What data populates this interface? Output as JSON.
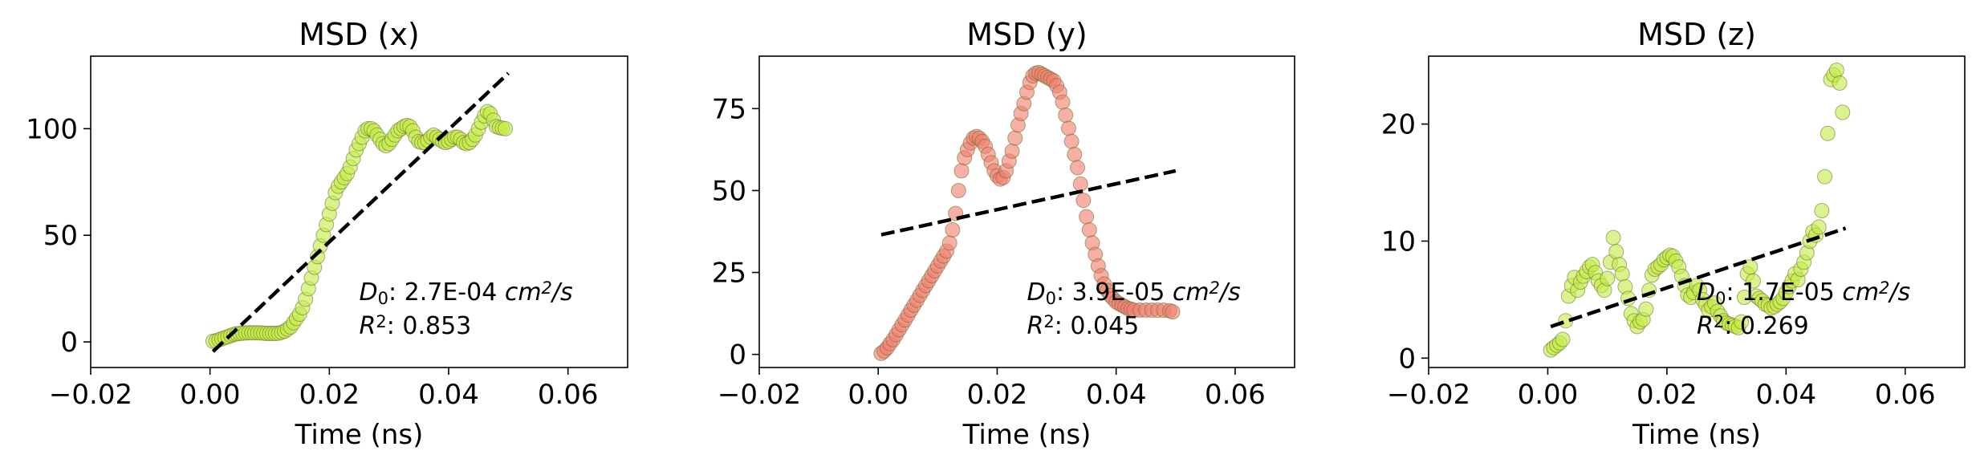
{
  "chart_data": [
    {
      "type": "scatter",
      "title": "MSD (x)",
      "xlabel": "Time (ns)",
      "ylabel": "",
      "xlim": [
        -0.02,
        0.07
      ],
      "ylim": [
        -12,
        134
      ],
      "xticks": [
        -0.02,
        0.0,
        0.02,
        0.04,
        0.06
      ],
      "xtick_labels": [
        "−0.02",
        "0.00",
        "0.02",
        "0.04",
        "0.06"
      ],
      "yticks": [
        0,
        50,
        100
      ],
      "ytick_labels": [
        "0",
        "50",
        "100"
      ],
      "point_color": "#c5ec4a",
      "points": [
        [
          0.0005,
          0.3
        ],
        [
          0.001,
          0.5
        ],
        [
          0.0015,
          1
        ],
        [
          0.002,
          1.5
        ],
        [
          0.0025,
          2
        ],
        [
          0.003,
          2.5
        ],
        [
          0.0035,
          3
        ],
        [
          0.004,
          3.5
        ],
        [
          0.0045,
          3.8
        ],
        [
          0.005,
          4
        ],
        [
          0.0055,
          4.1
        ],
        [
          0.006,
          4.2
        ],
        [
          0.0065,
          4.3
        ],
        [
          0.007,
          4.3
        ],
        [
          0.0075,
          4.3
        ],
        [
          0.008,
          4.3
        ],
        [
          0.0085,
          4.2
        ],
        [
          0.009,
          4.1
        ],
        [
          0.0095,
          4
        ],
        [
          0.01,
          4
        ],
        [
          0.0105,
          4
        ],
        [
          0.011,
          4
        ],
        [
          0.0115,
          4.1
        ],
        [
          0.012,
          4.5
        ],
        [
          0.0125,
          5
        ],
        [
          0.013,
          6
        ],
        [
          0.0135,
          7
        ],
        [
          0.014,
          9
        ],
        [
          0.0145,
          11
        ],
        [
          0.015,
          13
        ],
        [
          0.0155,
          16
        ],
        [
          0.016,
          20
        ],
        [
          0.0165,
          25
        ],
        [
          0.017,
          30
        ],
        [
          0.0175,
          35
        ],
        [
          0.018,
          40
        ],
        [
          0.0185,
          45
        ],
        [
          0.019,
          50
        ],
        [
          0.0195,
          55
        ],
        [
          0.02,
          60
        ],
        [
          0.0205,
          65
        ],
        [
          0.021,
          70
        ],
        [
          0.0215,
          73
        ],
        [
          0.022,
          75
        ],
        [
          0.0225,
          77
        ],
        [
          0.023,
          79
        ],
        [
          0.0235,
          82
        ],
        [
          0.024,
          86
        ],
        [
          0.0245,
          90
        ],
        [
          0.025,
          93
        ],
        [
          0.0255,
          96
        ],
        [
          0.026,
          99
        ],
        [
          0.0265,
          100
        ],
        [
          0.027,
          100
        ],
        [
          0.0275,
          99
        ],
        [
          0.028,
          97
        ],
        [
          0.0285,
          95
        ],
        [
          0.029,
          93
        ],
        [
          0.0295,
          92
        ],
        [
          0.03,
          93
        ],
        [
          0.0305,
          95
        ],
        [
          0.031,
          97
        ],
        [
          0.0315,
          99
        ],
        [
          0.032,
          100
        ],
        [
          0.0325,
          101
        ],
        [
          0.033,
          101.5
        ],
        [
          0.0335,
          101
        ],
        [
          0.034,
          99
        ],
        [
          0.0345,
          96
        ],
        [
          0.035,
          94
        ],
        [
          0.0355,
          93.5
        ],
        [
          0.036,
          93.5
        ],
        [
          0.0365,
          94.5
        ],
        [
          0.037,
          96
        ],
        [
          0.0375,
          97
        ],
        [
          0.038,
          96
        ],
        [
          0.0385,
          95
        ],
        [
          0.039,
          94
        ],
        [
          0.0395,
          93.5
        ],
        [
          0.04,
          94
        ],
        [
          0.0405,
          95
        ],
        [
          0.041,
          96
        ],
        [
          0.0415,
          96
        ],
        [
          0.042,
          95
        ],
        [
          0.0425,
          93.5
        ],
        [
          0.043,
          93
        ],
        [
          0.0435,
          93.5
        ],
        [
          0.044,
          95
        ],
        [
          0.0445,
          97
        ],
        [
          0.045,
          100
        ],
        [
          0.0455,
          103
        ],
        [
          0.046,
          106
        ],
        [
          0.0465,
          108
        ],
        [
          0.047,
          107
        ],
        [
          0.0475,
          104
        ],
        [
          0.048,
          101
        ],
        [
          0.0485,
          100.5
        ],
        [
          0.049,
          100.2
        ],
        [
          0.0495,
          100
        ]
      ],
      "fit": {
        "x": [
          0.0005,
          0.05
        ],
        "y": [
          -4.5,
          126
        ]
      },
      "annotation": {
        "d0_label": "D",
        "d0_sub": "0",
        "d0_value": ": 2.7E-04 ",
        "d0_unit": "cm",
        "d0_exp": "2",
        "d0_tail": "/s",
        "r2_label": "R",
        "r2_exp": "2",
        "r2_value": ": 0.853"
      }
    },
    {
      "type": "scatter",
      "title": "MSD (y)",
      "xlabel": "Time (ns)",
      "ylabel": "",
      "xlim": [
        -0.02,
        0.07
      ],
      "ylim": [
        -4,
        91
      ],
      "xticks": [
        -0.02,
        0.0,
        0.02,
        0.04,
        0.06
      ],
      "xtick_labels": [
        "−0.02",
        "0.00",
        "0.02",
        "0.04",
        "0.06"
      ],
      "yticks": [
        0,
        25,
        50,
        75
      ],
      "ytick_labels": [
        "0",
        "25",
        "50",
        "75"
      ],
      "point_color": "#f08070",
      "points": [
        [
          0.0005,
          0.3
        ],
        [
          0.001,
          1
        ],
        [
          0.0015,
          2
        ],
        [
          0.002,
          3.3
        ],
        [
          0.0025,
          4.5
        ],
        [
          0.003,
          6
        ],
        [
          0.0035,
          7.5
        ],
        [
          0.004,
          9
        ],
        [
          0.0045,
          10.5
        ],
        [
          0.005,
          12
        ],
        [
          0.0055,
          13.5
        ],
        [
          0.006,
          15
        ],
        [
          0.0065,
          16.5
        ],
        [
          0.007,
          18
        ],
        [
          0.0075,
          19.5
        ],
        [
          0.008,
          21
        ],
        [
          0.0085,
          22.5
        ],
        [
          0.009,
          24
        ],
        [
          0.0095,
          25.5
        ],
        [
          0.01,
          27
        ],
        [
          0.0105,
          28.5
        ],
        [
          0.011,
          30
        ],
        [
          0.0115,
          31.5
        ],
        [
          0.012,
          34
        ],
        [
          0.0125,
          38
        ],
        [
          0.013,
          43
        ],
        [
          0.0135,
          50
        ],
        [
          0.014,
          56
        ],
        [
          0.0145,
          60
        ],
        [
          0.015,
          62.5
        ],
        [
          0.0155,
          64.5
        ],
        [
          0.016,
          66
        ],
        [
          0.0165,
          66.5
        ],
        [
          0.017,
          66
        ],
        [
          0.0175,
          65
        ],
        [
          0.018,
          63.5
        ],
        [
          0.0185,
          61
        ],
        [
          0.019,
          58.5
        ],
        [
          0.0195,
          56
        ],
        [
          0.02,
          54.5
        ],
        [
          0.0205,
          53.5
        ],
        [
          0.021,
          54
        ],
        [
          0.0215,
          56
        ],
        [
          0.022,
          59
        ],
        [
          0.0225,
          62
        ],
        [
          0.023,
          66
        ],
        [
          0.0235,
          70
        ],
        [
          0.024,
          73.5
        ],
        [
          0.0245,
          76.5
        ],
        [
          0.025,
          80
        ],
        [
          0.0255,
          83
        ],
        [
          0.026,
          85
        ],
        [
          0.0265,
          85.8
        ],
        [
          0.027,
          86
        ],
        [
          0.0275,
          85.5
        ],
        [
          0.028,
          85
        ],
        [
          0.0285,
          84.5
        ],
        [
          0.029,
          84
        ],
        [
          0.0295,
          83.5
        ],
        [
          0.03,
          82
        ],
        [
          0.0305,
          80
        ],
        [
          0.031,
          77
        ],
        [
          0.0315,
          73
        ],
        [
          0.032,
          69
        ],
        [
          0.0325,
          65
        ],
        [
          0.033,
          61
        ],
        [
          0.0335,
          57
        ],
        [
          0.034,
          52
        ],
        [
          0.0345,
          47
        ],
        [
          0.035,
          42
        ],
        [
          0.0355,
          38
        ],
        [
          0.036,
          34
        ],
        [
          0.0365,
          30.5
        ],
        [
          0.037,
          27
        ],
        [
          0.0375,
          24
        ],
        [
          0.038,
          21.5
        ],
        [
          0.0385,
          19.5
        ],
        [
          0.039,
          18
        ],
        [
          0.0395,
          17
        ],
        [
          0.04,
          16
        ],
        [
          0.0405,
          15.5
        ],
        [
          0.041,
          15
        ],
        [
          0.0415,
          14.5
        ],
        [
          0.042,
          14
        ],
        [
          0.0425,
          13.8
        ],
        [
          0.043,
          13.5
        ],
        [
          0.044,
          13.5
        ],
        [
          0.045,
          13.5
        ],
        [
          0.046,
          13.5
        ],
        [
          0.047,
          13.5
        ],
        [
          0.048,
          13.5
        ],
        [
          0.049,
          13.3
        ],
        [
          0.0495,
          13
        ]
      ],
      "fit": {
        "x": [
          0.0005,
          0.05
        ],
        "y": [
          36.5,
          56
        ]
      },
      "annotation": {
        "d0_label": "D",
        "d0_sub": "0",
        "d0_value": ": 3.9E-05 ",
        "d0_unit": "cm",
        "d0_exp": "2",
        "d0_tail": "/s",
        "r2_label": "R",
        "r2_exp": "2",
        "r2_value": ": 0.045"
      }
    },
    {
      "type": "scatter",
      "title": "MSD (z)",
      "xlabel": "Time (ns)",
      "ylabel": "",
      "xlim": [
        -0.02,
        0.07
      ],
      "ylim": [
        -0.8,
        25.8
      ],
      "xticks": [
        -0.02,
        0.0,
        0.02,
        0.04,
        0.06
      ],
      "xtick_labels": [
        "−0.02",
        "0.00",
        "0.02",
        "0.04",
        "0.06"
      ],
      "yticks": [
        0,
        10,
        20
      ],
      "ytick_labels": [
        "0",
        "10",
        "20"
      ],
      "point_color": "#c5ec4a",
      "points": [
        [
          0.0005,
          0.7
        ],
        [
          0.001,
          0.9
        ],
        [
          0.0015,
          1.1
        ],
        [
          0.002,
          1.3
        ],
        [
          0.0025,
          1.6
        ],
        [
          0.003,
          3.2
        ],
        [
          0.0035,
          5.3
        ],
        [
          0.004,
          6.2
        ],
        [
          0.0045,
          6.9
        ],
        [
          0.005,
          5.8
        ],
        [
          0.0055,
          6.5
        ],
        [
          0.006,
          7.0
        ],
        [
          0.0065,
          7.4
        ],
        [
          0.007,
          7.8
        ],
        [
          0.0075,
          8
        ],
        [
          0.008,
          7.3
        ],
        [
          0.0085,
          6.6
        ],
        [
          0.009,
          6.2
        ],
        [
          0.0095,
          5.8
        ],
        [
          0.01,
          6.8
        ],
        [
          0.0105,
          8.2
        ],
        [
          0.011,
          10.3
        ],
        [
          0.0115,
          9.1
        ],
        [
          0.012,
          8.0
        ],
        [
          0.0125,
          7.2
        ],
        [
          0.013,
          6.1
        ],
        [
          0.0135,
          5.1
        ],
        [
          0.014,
          3.8
        ],
        [
          0.0145,
          3.2
        ],
        [
          0.015,
          2.7
        ],
        [
          0.0155,
          3.1
        ],
        [
          0.016,
          3.3
        ],
        [
          0.0165,
          4.2
        ],
        [
          0.017,
          5.8
        ],
        [
          0.0175,
          7.1
        ],
        [
          0.018,
          7.6
        ],
        [
          0.0185,
          7.8
        ],
        [
          0.019,
          8.0
        ],
        [
          0.0195,
          8.4
        ],
        [
          0.02,
          8.6
        ],
        [
          0.0205,
          8.8
        ],
        [
          0.021,
          8.7
        ],
        [
          0.0215,
          8.3
        ],
        [
          0.022,
          7.8
        ],
        [
          0.0225,
          7.0
        ],
        [
          0.023,
          6.2
        ],
        [
          0.0235,
          5.4
        ],
        [
          0.024,
          5.2
        ],
        [
          0.0245,
          5.6
        ],
        [
          0.025,
          6.2
        ],
        [
          0.0255,
          5.8
        ],
        [
          0.026,
          5.0
        ],
        [
          0.0265,
          4.6
        ],
        [
          0.027,
          4.1
        ],
        [
          0.0275,
          4.4
        ],
        [
          0.028,
          4.7
        ],
        [
          0.0285,
          4.0
        ],
        [
          0.029,
          3.6
        ],
        [
          0.0295,
          3.2
        ],
        [
          0.03,
          3.0
        ],
        [
          0.0305,
          2.9
        ],
        [
          0.031,
          2.8
        ],
        [
          0.0315,
          2.7
        ],
        [
          0.032,
          2.6
        ],
        [
          0.0325,
          3.1
        ],
        [
          0.033,
          5.2
        ],
        [
          0.0335,
          7.2
        ],
        [
          0.034,
          7.8
        ],
        [
          0.0345,
          6.6
        ],
        [
          0.035,
          5.3
        ],
        [
          0.0355,
          5.1
        ],
        [
          0.036,
          4.9
        ],
        [
          0.0365,
          4.6
        ],
        [
          0.037,
          4.5
        ],
        [
          0.0375,
          4.3
        ],
        [
          0.038,
          4.4
        ],
        [
          0.0385,
          4.6
        ],
        [
          0.039,
          4.8
        ],
        [
          0.0395,
          5.1
        ],
        [
          0.04,
          5.6
        ],
        [
          0.0405,
          6.1
        ],
        [
          0.041,
          6.6
        ],
        [
          0.0415,
          7.2
        ],
        [
          0.042,
          6.7
        ],
        [
          0.0425,
          7.6
        ],
        [
          0.043,
          8.2
        ],
        [
          0.0435,
          9.0
        ],
        [
          0.044,
          10.0
        ],
        [
          0.0445,
          10.8
        ],
        [
          0.045,
          10.5
        ],
        [
          0.0455,
          11.2
        ],
        [
          0.046,
          12.6
        ],
        [
          0.0465,
          15.5
        ],
        [
          0.047,
          19.2
        ],
        [
          0.0475,
          23.8
        ],
        [
          0.048,
          24.2
        ],
        [
          0.0485,
          24.6
        ],
        [
          0.049,
          23.5
        ],
        [
          0.0495,
          21
        ]
      ],
      "fit": {
        "x": [
          0.0005,
          0.05
        ],
        "y": [
          2.7,
          11.1
        ]
      },
      "annotation": {
        "d0_label": "D",
        "d0_sub": "0",
        "d0_value": ": 1.7E-05 ",
        "d0_unit": "cm",
        "d0_exp": "2",
        "d0_tail": "/s",
        "r2_label": "R",
        "r2_exp": "2",
        "r2_value": ": 0.269"
      }
    }
  ]
}
